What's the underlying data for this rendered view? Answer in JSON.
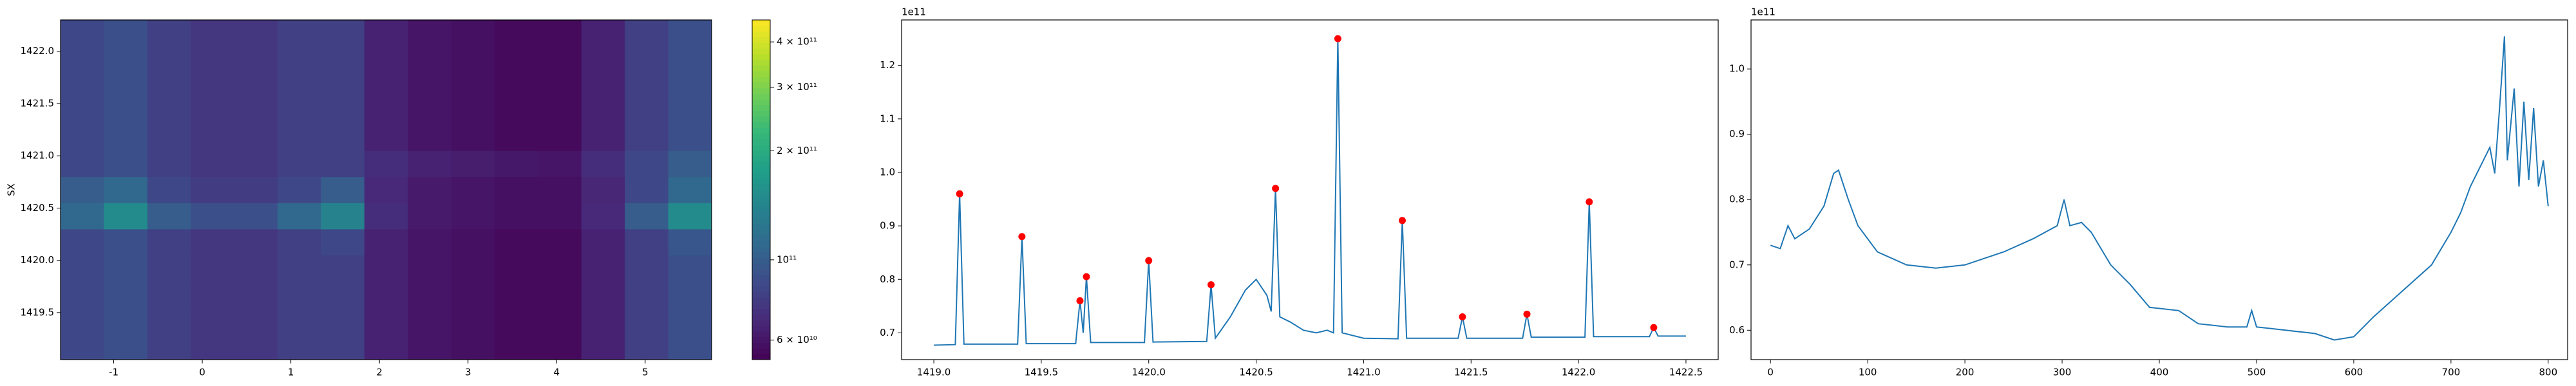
{
  "chart_data": [
    {
      "type": "heatmap",
      "ylabel": "SX",
      "xlim": [
        -1.6,
        5.75
      ],
      "ylim": [
        1419.05,
        1422.3
      ],
      "xticks": [
        -1,
        0,
        1,
        2,
        3,
        4,
        5
      ],
      "yticks": [
        1419.5,
        {
          "value": 1420.0,
          "label": "1420.0"
        },
        1420.5,
        {
          "value": 1421.0,
          "label": "1421.0"
        },
        1421.5,
        {
          "value": 1422.0,
          "label": "1422.0"
        }
      ],
      "xbins": [
        -1.6,
        -1.11,
        -0.62,
        -0.13,
        0.36,
        0.85,
        1.34,
        1.83,
        2.32,
        2.81,
        3.3,
        3.79,
        4.28,
        4.77,
        5.26,
        5.75
      ],
      "ybins": [
        1419.05,
        1419.3,
        1419.55,
        1419.8,
        1420.05,
        1420.3,
        1420.55,
        1420.8,
        1421.05,
        1421.3,
        1421.55,
        1421.8,
        1422.05,
        1422.3
      ],
      "z": [
        [
          85000000000.0,
          90000000000.0,
          80000000000.0,
          75000000000.0,
          75000000000.0,
          80000000000.0,
          80000000000.0,
          65000000000.0,
          60000000000.0,
          58000000000.0,
          56000000000.0,
          56000000000.0,
          65000000000.0,
          80000000000.0,
          90000000000.0
        ],
        [
          85000000000.0,
          90000000000.0,
          80000000000.0,
          75000000000.0,
          75000000000.0,
          80000000000.0,
          80000000000.0,
          65000000000.0,
          60000000000.0,
          58000000000.0,
          56000000000.0,
          56000000000.0,
          65000000000.0,
          80000000000.0,
          90000000000.0
        ],
        [
          85000000000.0,
          90000000000.0,
          80000000000.0,
          75000000000.0,
          75000000000.0,
          80000000000.0,
          80000000000.0,
          65000000000.0,
          60000000000.0,
          58000000000.0,
          56000000000.0,
          56000000000.0,
          65000000000.0,
          80000000000.0,
          90000000000.0
        ],
        [
          85000000000.0,
          90000000000.0,
          80000000000.0,
          75000000000.0,
          75000000000.0,
          80000000000.0,
          80000000000.0,
          65000000000.0,
          60000000000.0,
          58000000000.0,
          56000000000.0,
          56000000000.0,
          65000000000.0,
          80000000000.0,
          90000000000.0
        ],
        [
          85000000000.0,
          90000000000.0,
          80000000000.0,
          75000000000.0,
          75000000000.0,
          80000000000.0,
          85000000000.0,
          65000000000.0,
          60000000000.0,
          58000000000.0,
          56000000000.0,
          56000000000.0,
          65000000000.0,
          80000000000.0,
          95000000000.0
        ],
        [
          110000000000.0,
          150000000000.0,
          100000000000.0,
          90000000000.0,
          90000000000.0,
          110000000000.0,
          140000000000.0,
          70000000000.0,
          62000000000.0,
          60000000000.0,
          58000000000.0,
          58000000000.0,
          68000000000.0,
          100000000000.0,
          150000000000.0
        ],
        [
          100000000000.0,
          110000000000.0,
          85000000000.0,
          78000000000.0,
          78000000000.0,
          85000000000.0,
          100000000000.0,
          68000000000.0,
          62000000000.0,
          60000000000.0,
          58000000000.0,
          58000000000.0,
          67000000000.0,
          85000000000.0,
          110000000000.0
        ],
        [
          85000000000.0,
          90000000000.0,
          80000000000.0,
          75000000000.0,
          75000000000.0,
          80000000000.0,
          80000000000.0,
          70000000000.0,
          65000000000.0,
          63000000000.0,
          61000000000.0,
          60000000000.0,
          70000000000.0,
          85000000000.0,
          100000000000.0
        ],
        [
          85000000000.0,
          90000000000.0,
          80000000000.0,
          75000000000.0,
          75000000000.0,
          80000000000.0,
          80000000000.0,
          65000000000.0,
          60000000000.0,
          58000000000.0,
          56000000000.0,
          56000000000.0,
          65000000000.0,
          80000000000.0,
          90000000000.0
        ],
        [
          85000000000.0,
          90000000000.0,
          80000000000.0,
          75000000000.0,
          75000000000.0,
          80000000000.0,
          80000000000.0,
          65000000000.0,
          60000000000.0,
          58000000000.0,
          56000000000.0,
          56000000000.0,
          65000000000.0,
          80000000000.0,
          90000000000.0
        ],
        [
          85000000000.0,
          90000000000.0,
          80000000000.0,
          75000000000.0,
          75000000000.0,
          80000000000.0,
          80000000000.0,
          65000000000.0,
          60000000000.0,
          58000000000.0,
          56000000000.0,
          56000000000.0,
          65000000000.0,
          80000000000.0,
          90000000000.0
        ],
        [
          85000000000.0,
          90000000000.0,
          80000000000.0,
          75000000000.0,
          75000000000.0,
          80000000000.0,
          80000000000.0,
          65000000000.0,
          60000000000.0,
          58000000000.0,
          56000000000.0,
          56000000000.0,
          65000000000.0,
          80000000000.0,
          90000000000.0
        ],
        [
          85000000000.0,
          90000000000.0,
          80000000000.0,
          75000000000.0,
          75000000000.0,
          80000000000.0,
          80000000000.0,
          65000000000.0,
          60000000000.0,
          58000000000.0,
          56000000000.0,
          56000000000.0,
          65000000000.0,
          80000000000.0,
          90000000000.0
        ]
      ],
      "colormap": "viridis",
      "clim": [
        53000000000.0,
        460000000000.0
      ],
      "log_scale": true,
      "cticks": [
        {
          "value": 60000000000.0,
          "label": "6 × 10¹⁰"
        },
        {
          "value": 100000000000.0,
          "label": "10¹¹"
        },
        {
          "value": 200000000000.0,
          "label": "2 × 10¹¹"
        },
        {
          "value": 300000000000.0,
          "label": "3 × 10¹¹"
        },
        {
          "value": 400000000000.0,
          "label": "4 × 10¹¹"
        }
      ]
    },
    {
      "type": "line",
      "offset_label": "1e11",
      "xlim": [
        1418.85,
        1422.65
      ],
      "ylim": [
        0.65,
        1.285
      ],
      "xticks": [
        {
          "value": 1419.0,
          "label": "1419.0"
        },
        1419.5,
        {
          "value": 1420.0,
          "label": "1420.0"
        },
        1420.5,
        {
          "value": 1421.0,
          "label": "1421.0"
        },
        1421.5,
        {
          "value": 1422.0,
          "label": "1422.0"
        },
        1422.5
      ],
      "yticks": [
        0.7,
        0.8,
        0.9,
        {
          "value": 1.0,
          "label": "1.0"
        },
        1.1,
        1.2
      ],
      "series": [
        {
          "type": "line",
          "color": "#1f77b4",
          "x": [
            1419.0,
            1419.1,
            1419.12,
            1419.14,
            1419.39,
            1419.41,
            1419.43,
            1419.66,
            1419.68,
            1419.695,
            1419.71,
            1419.73,
            1419.98,
            1420.0,
            1420.02,
            1420.27,
            1420.29,
            1420.31,
            1420.38,
            1420.45,
            1420.5,
            1420.55,
            1420.57,
            1420.59,
            1420.61,
            1420.66,
            1420.72,
            1420.78,
            1420.83,
            1420.86,
            1420.88,
            1420.9,
            1421.0,
            1421.16,
            1421.18,
            1421.2,
            1421.44,
            1421.46,
            1421.48,
            1421.74,
            1421.76,
            1421.78,
            1422.03,
            1422.05,
            1422.07,
            1422.33,
            1422.35,
            1422.37,
            1422.5
          ],
          "values": [
            0.677,
            0.678,
            0.96,
            0.679,
            0.679,
            0.88,
            0.68,
            0.68,
            0.76,
            0.7,
            0.805,
            0.682,
            0.682,
            0.835,
            0.683,
            0.684,
            0.79,
            0.69,
            0.73,
            0.78,
            0.8,
            0.77,
            0.74,
            0.97,
            0.73,
            0.72,
            0.705,
            0.7,
            0.705,
            0.7,
            1.25,
            0.7,
            0.69,
            0.689,
            0.91,
            0.69,
            0.69,
            0.73,
            0.69,
            0.69,
            0.735,
            0.692,
            0.692,
            0.945,
            0.693,
            0.693,
            0.71,
            0.694,
            0.694
          ]
        },
        {
          "type": "scatter",
          "color": "#ff0000",
          "x": [
            1419.12,
            1419.41,
            1419.68,
            1419.71,
            1420.0,
            1420.29,
            1420.59,
            1420.88,
            1421.18,
            1421.46,
            1421.76,
            1422.05,
            1422.35
          ],
          "values": [
            0.96,
            0.88,
            0.76,
            0.805,
            0.835,
            0.79,
            0.97,
            1.25,
            0.91,
            0.73,
            0.735,
            0.945,
            0.71
          ]
        }
      ]
    },
    {
      "type": "line",
      "offset_label": "1e11",
      "color": "#1f77b4",
      "xlim": [
        -20,
        820
      ],
      "ylim": [
        0.555,
        1.075
      ],
      "xticks": [
        0,
        100,
        200,
        300,
        400,
        500,
        600,
        700,
        800
      ],
      "yticks": [
        0.6,
        0.7,
        0.8,
        0.9,
        {
          "value": 1.0,
          "label": "1.0"
        }
      ],
      "x": [
        0,
        10,
        18,
        25,
        40,
        55,
        65,
        70,
        80,
        90,
        110,
        140,
        170,
        200,
        240,
        270,
        295,
        302,
        308,
        320,
        330,
        350,
        370,
        390,
        420,
        440,
        470,
        490,
        495,
        500,
        530,
        560,
        580,
        600,
        620,
        650,
        680,
        700,
        710,
        720,
        730,
        740,
        745,
        750,
        755,
        758,
        765,
        770,
        775,
        780,
        785,
        790,
        795,
        800
      ],
      "values": [
        0.73,
        0.725,
        0.76,
        0.74,
        0.755,
        0.79,
        0.84,
        0.845,
        0.8,
        0.76,
        0.72,
        0.7,
        0.695,
        0.7,
        0.72,
        0.74,
        0.76,
        0.8,
        0.76,
        0.765,
        0.75,
        0.7,
        0.67,
        0.635,
        0.63,
        0.61,
        0.605,
        0.605,
        0.63,
        0.605,
        0.6,
        0.595,
        0.585,
        0.59,
        0.62,
        0.66,
        0.7,
        0.75,
        0.78,
        0.82,
        0.85,
        0.88,
        0.84,
        0.94,
        1.05,
        0.86,
        0.97,
        0.82,
        0.95,
        0.83,
        0.94,
        0.82,
        0.86,
        0.79
      ]
    }
  ]
}
